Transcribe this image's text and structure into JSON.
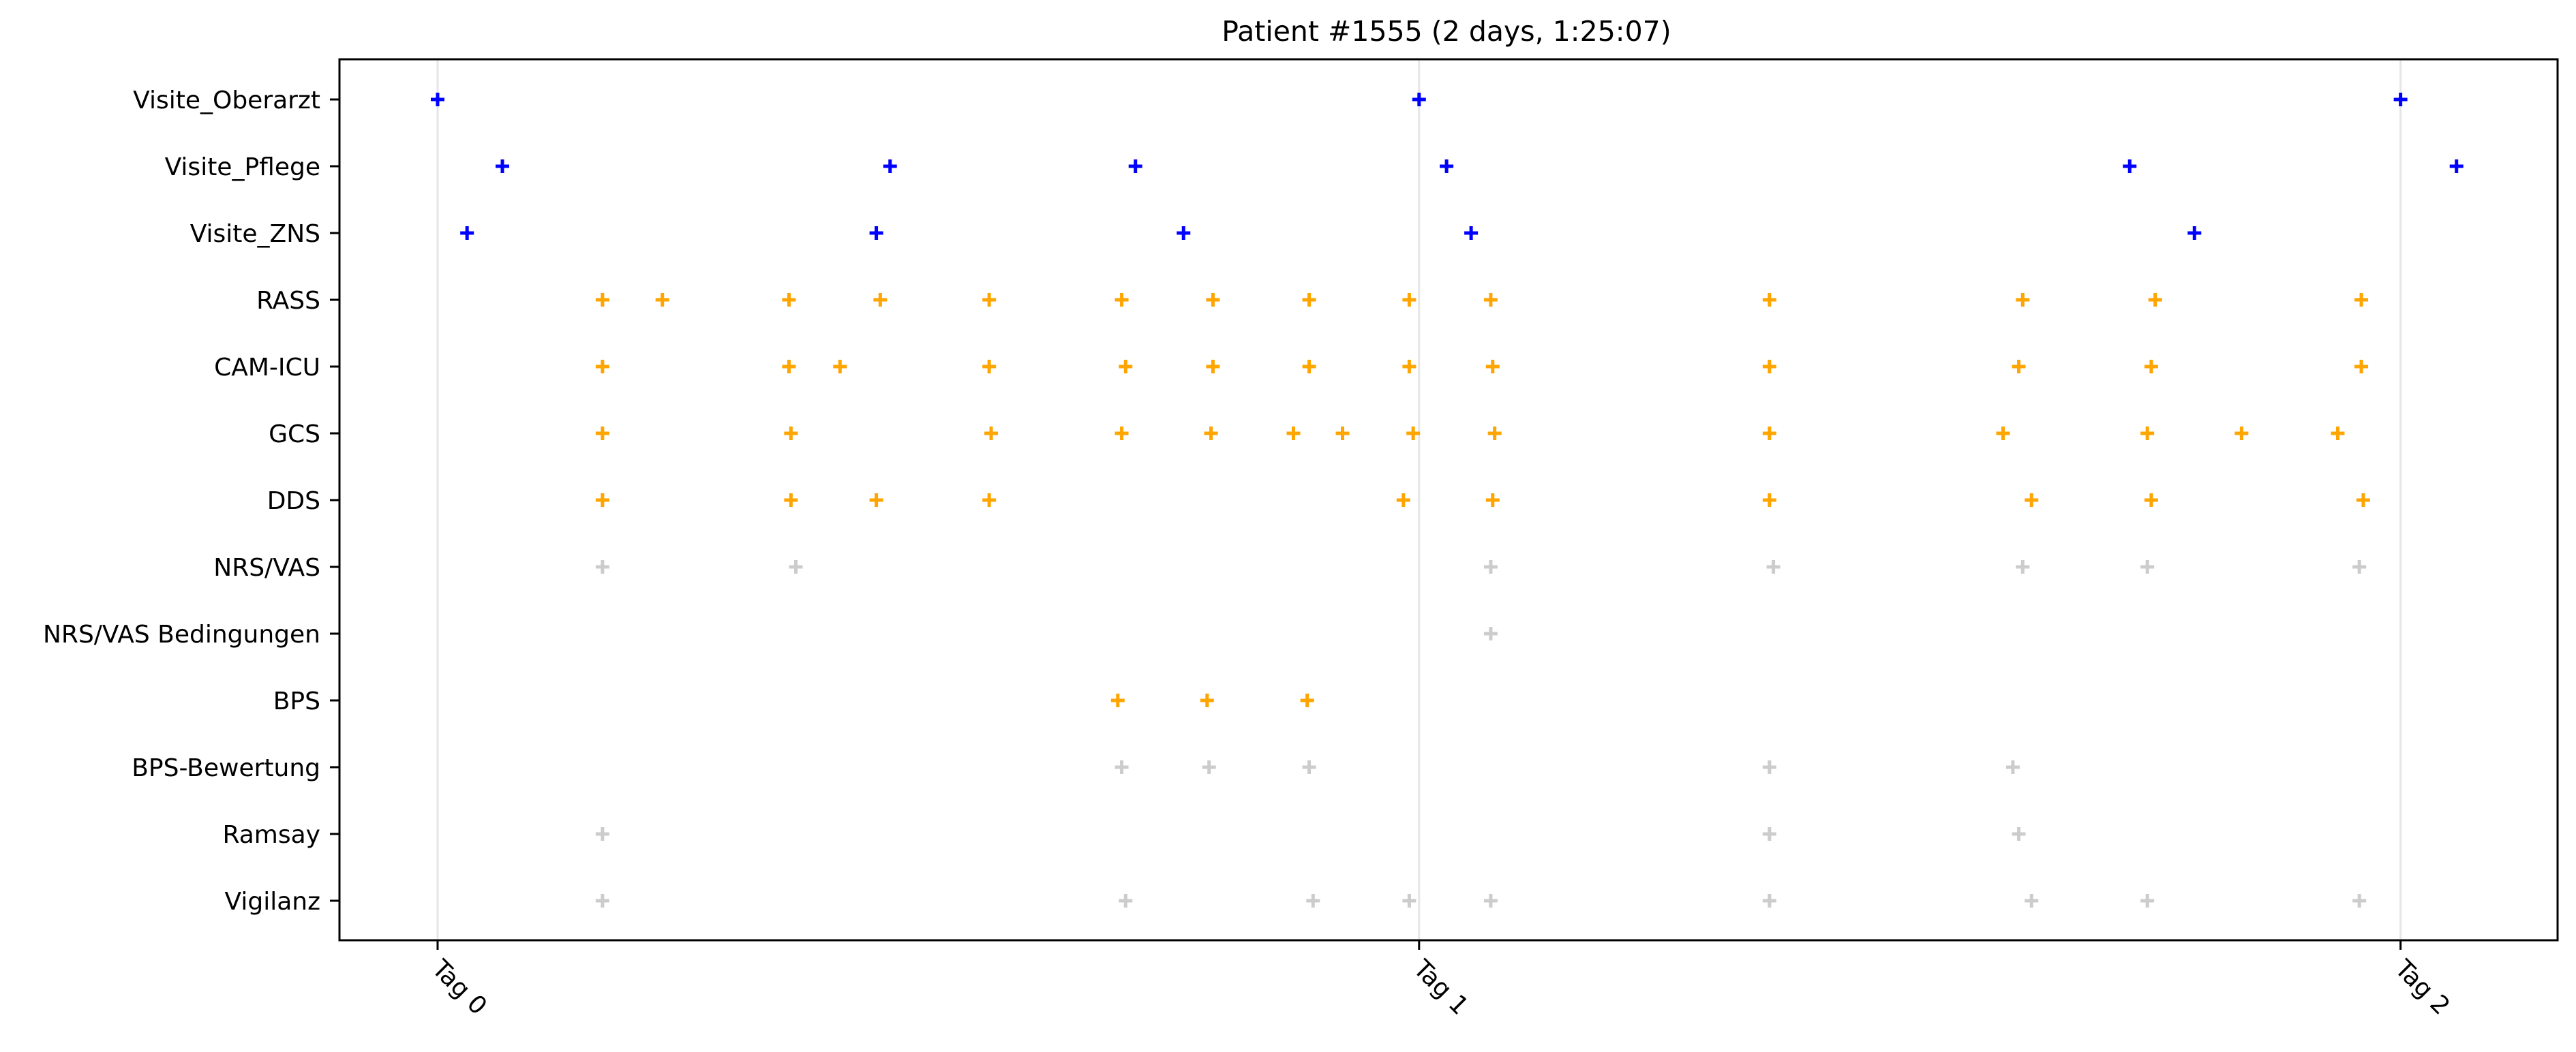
{
  "chart_data": {
    "type": "scatter",
    "title": "Patient #1555 (2 days, 1:25:07)",
    "x_ticks": [
      "Tag 0",
      "Tag 1",
      "Tag 2"
    ],
    "xlim": [
      -0.1,
      2.16
    ],
    "grid_x": true,
    "marker": "+",
    "colors": {
      "visit": "#0000ff",
      "assessment": "#ffa500",
      "other": "#cccccc"
    },
    "categories": [
      "Visite_Oberarzt",
      "Visite_Pflege",
      "Visite_ZNS",
      "RASS",
      "CAM-ICU",
      "GCS",
      "DDS",
      "NRS/VAS",
      "NRS/VAS Bedingungen",
      "BPS",
      "BPS-Bewertung",
      "Ramsay",
      "Vigilanz"
    ],
    "series": [
      {
        "category": "Visite_Oberarzt",
        "color": "visit",
        "x": [
          0.0,
          1.0,
          2.0
        ]
      },
      {
        "category": "Visite_Pflege",
        "color": "visit",
        "x": [
          0.066,
          0.461,
          0.711,
          1.028,
          1.724,
          2.057
        ]
      },
      {
        "category": "Visite_ZNS",
        "color": "visit",
        "x": [
          0.03,
          0.447,
          0.76,
          1.053,
          1.79
        ]
      },
      {
        "category": "RASS",
        "color": "assessment",
        "x": [
          0.168,
          0.229,
          0.358,
          0.451,
          0.562,
          0.697,
          0.79,
          0.888,
          0.99,
          1.073,
          1.357,
          1.615,
          1.75,
          1.96
        ]
      },
      {
        "category": "CAM-ICU",
        "color": "assessment",
        "x": [
          0.168,
          0.358,
          0.41,
          0.562,
          0.701,
          0.79,
          0.888,
          0.99,
          1.075,
          1.357,
          1.611,
          1.746,
          1.96
        ]
      },
      {
        "category": "GCS",
        "color": "assessment",
        "x": [
          0.168,
          0.36,
          0.564,
          0.697,
          0.788,
          0.872,
          0.922,
          0.994,
          1.077,
          1.357,
          1.595,
          1.742,
          1.838,
          1.936
        ]
      },
      {
        "category": "DDS",
        "color": "assessment",
        "x": [
          0.168,
          0.36,
          0.447,
          0.562,
          0.984,
          1.075,
          1.357,
          1.624,
          1.746,
          1.962
        ]
      },
      {
        "category": "NRS/VAS",
        "color": "other",
        "x": [
          0.168,
          0.365,
          1.073,
          1.361,
          1.615,
          1.742,
          1.958
        ]
      },
      {
        "category": "NRS/VAS Bedingungen",
        "color": "other",
        "x": [
          1.073
        ]
      },
      {
        "category": "BPS",
        "color": "assessment",
        "x": [
          0.693,
          0.784,
          0.886
        ]
      },
      {
        "category": "BPS-Bewertung",
        "color": "other",
        "x": [
          0.697,
          0.786,
          0.888,
          1.357,
          1.605
        ]
      },
      {
        "category": "Ramsay",
        "color": "other",
        "x": [
          0.168,
          1.357,
          1.611
        ]
      },
      {
        "category": "Vigilanz",
        "color": "other",
        "x": [
          0.168,
          0.701,
          0.892,
          0.99,
          1.073,
          1.357,
          1.624,
          1.742,
          1.958
        ]
      }
    ]
  }
}
